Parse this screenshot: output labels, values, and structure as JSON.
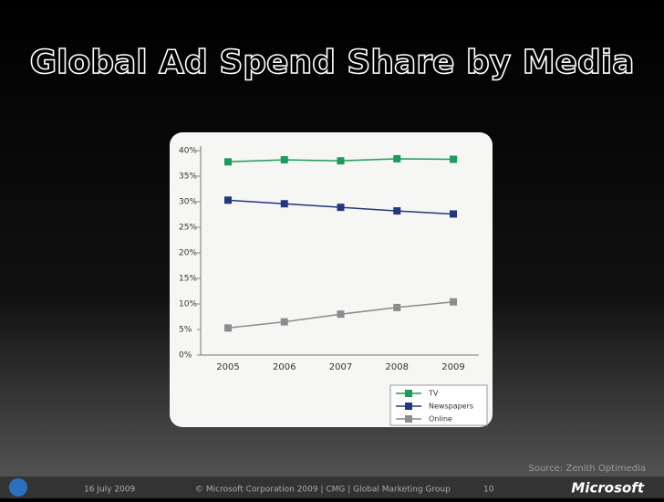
{
  "chart_data": {
    "type": "line",
    "title": "Global Ad Spend Share by Media",
    "categories": [
      "2005",
      "2006",
      "2007",
      "2008",
      "2009"
    ],
    "series": [
      {
        "name": "TV",
        "color": "#1f9a5a",
        "values": [
          37.8,
          38.2,
          38.0,
          38.4,
          38.3
        ]
      },
      {
        "name": "Newspapers",
        "color": "#22387a",
        "values": [
          30.3,
          29.6,
          28.9,
          28.2,
          27.6
        ]
      },
      {
        "name": "Online",
        "color": "#8c8c8c",
        "values": [
          5.3,
          6.5,
          8.0,
          9.3,
          10.4
        ]
      }
    ],
    "ylim": [
      0,
      40
    ],
    "yticks": [
      {
        "value": 0,
        "label": "0%"
      },
      {
        "value": 5,
        "label": "5%"
      },
      {
        "value": 10,
        "label": "10%"
      },
      {
        "value": 15,
        "label": "15%"
      },
      {
        "value": 20,
        "label": "20%"
      },
      {
        "value": 25,
        "label": "25%"
      },
      {
        "value": 30,
        "label": "30%"
      },
      {
        "value": 35,
        "label": "35%"
      },
      {
        "value": 40,
        "label": "40%"
      }
    ],
    "legend": "bottom-right"
  },
  "slide": {
    "source": "Source: Zenith Optimedia",
    "date": "16 July 2009",
    "footer": "© Microsoft Corporation 2009 | CMG | Global Marketing Group",
    "page": "10",
    "logo": "Microsoft"
  }
}
